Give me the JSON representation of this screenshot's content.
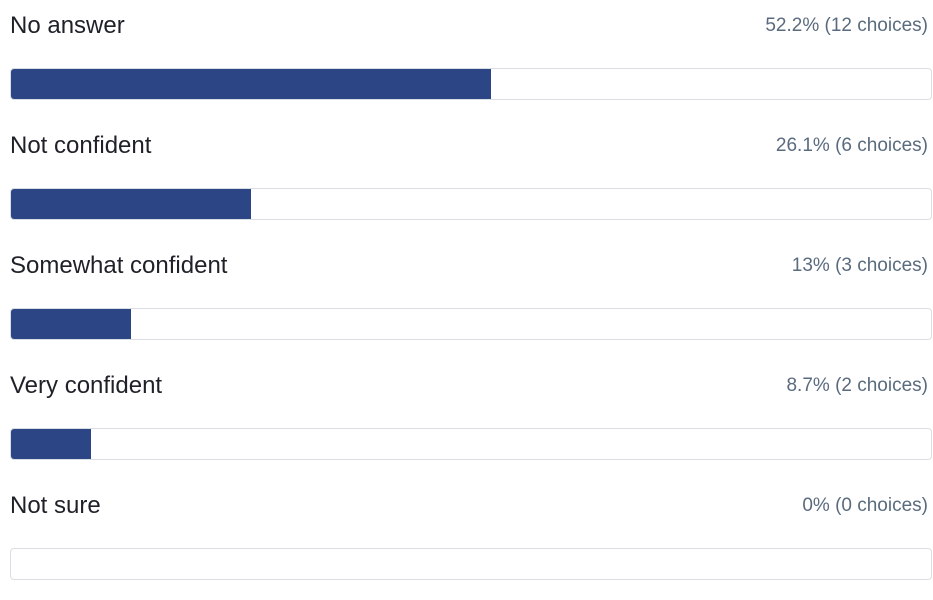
{
  "chart_data": {
    "type": "bar",
    "orientation": "horizontal",
    "categories": [
      "No answer",
      "Not confident",
      "Somewhat confident",
      "Very confident",
      "Not sure"
    ],
    "values": [
      52.2,
      26.1,
      13,
      8.7,
      0
    ],
    "counts": [
      12,
      6,
      3,
      2,
      0
    ],
    "labels": [
      "52.2% (12 choices)",
      "26.1% (6 choices)",
      "13% (3 choices)",
      "8.7% (2 choices)",
      "0% (0 choices)"
    ],
    "xlim": [
      0,
      100
    ],
    "grid": false,
    "bar_color": "#2c4585"
  },
  "options": [
    {
      "label": "No answer",
      "stat": "52.2% (12 choices)"
    },
    {
      "label": "Not confident",
      "stat": "26.1% (6 choices)"
    },
    {
      "label": "Somewhat confident",
      "stat": "13% (3 choices)"
    },
    {
      "label": "Very confident",
      "stat": "8.7% (2 choices)"
    },
    {
      "label": "Not sure",
      "stat": "0% (0 choices)"
    }
  ]
}
